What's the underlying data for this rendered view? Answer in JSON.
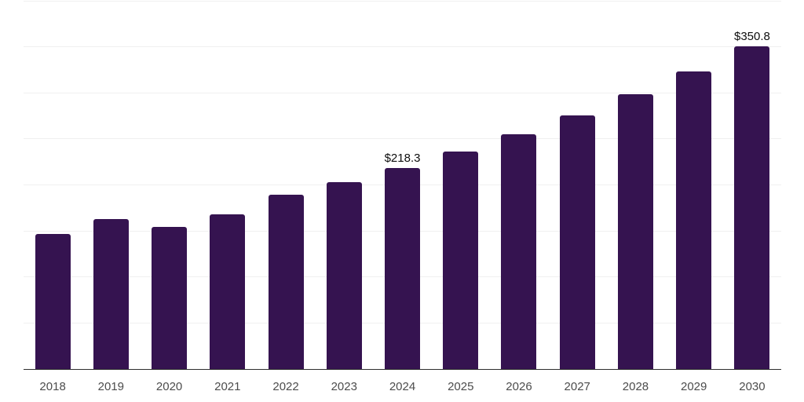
{
  "chart_data": {
    "type": "bar",
    "title": "",
    "xlabel": "",
    "ylabel": "",
    "categories": [
      "2018",
      "2019",
      "2020",
      "2021",
      "2022",
      "2023",
      "2024",
      "2025",
      "2026",
      "2027",
      "2028",
      "2029",
      "2030"
    ],
    "values": [
      146.9,
      163.0,
      154.1,
      168.4,
      189.1,
      202.9,
      218.3,
      236.3,
      255.0,
      275.5,
      298.5,
      323.0,
      350.8
    ],
    "data_labels": [
      "",
      "",
      "",
      "",
      "",
      "",
      "$218.3",
      "",
      "",
      "",
      "",
      "",
      "$350.8"
    ],
    "value_prefix": "$",
    "ylim": [
      0,
      400
    ],
    "grid_step": 50,
    "grid": "horizontal-only",
    "legend": "none",
    "y_axis_tick_labels_visible": false,
    "colors": {
      "bar": "#351350",
      "axis": "#2f2f2f",
      "grid": "#f0f0f0",
      "tick_label": "#4c4c4c",
      "data_label": "#0d0d0d",
      "background": "#ffffff"
    }
  }
}
